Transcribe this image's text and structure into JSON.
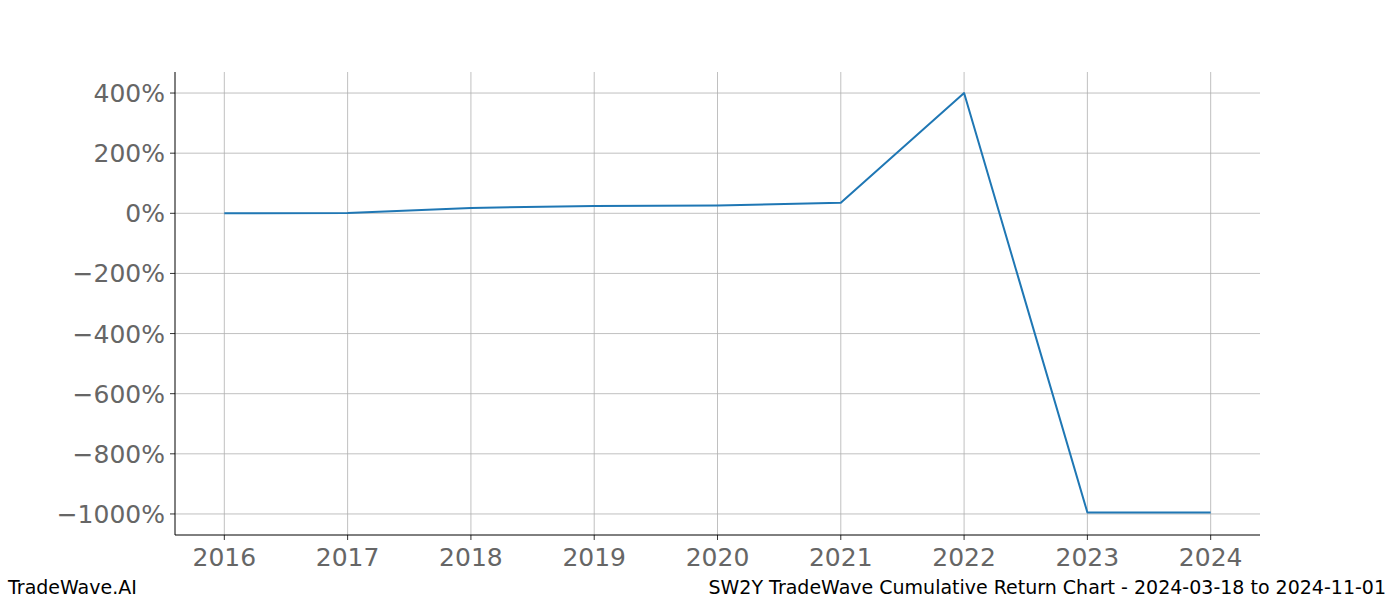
{
  "chart_data": {
    "type": "line",
    "title": "SW2Y TradeWave Cumulative Return Chart - 2024-03-18 to 2024-11-01",
    "watermark": "TradeWave.AI",
    "x": [
      2016,
      2017,
      2018,
      2019,
      2020,
      2021,
      2022,
      2023,
      2024
    ],
    "series": [
      {
        "name": "SW2Y",
        "color": "#1f77b4",
        "values": [
          0,
          1,
          18,
          24,
          26,
          35,
          400,
          -995,
          -995
        ]
      }
    ],
    "xlim": [
      2015.6,
      2024.4
    ],
    "xticks": [
      2016,
      2017,
      2018,
      2019,
      2020,
      2021,
      2022,
      2023,
      2024
    ],
    "ylim": [
      -1070,
      470
    ],
    "yticks": [
      {
        "value": -1000,
        "label": "−1000%"
      },
      {
        "value": -800,
        "label": "−800%"
      },
      {
        "value": -600,
        "label": "−600%"
      },
      {
        "value": -400,
        "label": "−400%"
      },
      {
        "value": -200,
        "label": "−200%"
      },
      {
        "value": 0,
        "label": "0%"
      },
      {
        "value": 200,
        "label": "200%"
      },
      {
        "value": 400,
        "label": "400%"
      }
    ],
    "grid": true
  }
}
